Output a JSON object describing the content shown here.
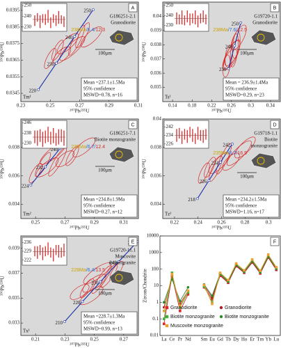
{
  "chart_data": [
    {
      "type": "concordia",
      "panel": "A",
      "sample": "G186251-2.1",
      "rock": [
        "Granodiorite"
      ],
      "age_parts": [
        {
          "text": "238Ma",
          "color": "#c9a400"
        },
        {
          "text": "/6.4/",
          "color": "#2a6fd6"
        },
        {
          "text": "12.3",
          "color": "#d62a2a"
        }
      ],
      "result": [
        "Mean =237.1±1.5Ma",
        "95% confidence",
        "MSWD=0.78, n=16"
      ],
      "scale_label": "100μm",
      "corner_label": "Tm¹",
      "xlabel": "²⁰⁷Pb/²³⁵U",
      "ylabel": "²⁰⁶Pb/²³⁸U",
      "xlim": [
        0.23,
        0.31
      ],
      "xticks": [
        0.23,
        0.25,
        0.27,
        0.29,
        0.31
      ],
      "ylim": [
        0.034,
        0.04
      ],
      "yticks": [
        0.0345,
        0.0355,
        0.0365,
        0.0375,
        0.0385,
        0.0395
      ],
      "age_marks": {
        "ages": [
          220,
          230,
          240,
          250
        ],
        "x": [
          0.2419,
          0.2542,
          0.2666,
          0.2792
        ],
        "y": [
          0.03472,
          0.03632,
          0.03793,
          0.03954
        ]
      },
      "ellipses": {
        "x": [
          0.255,
          0.262,
          0.268,
          0.258,
          0.272,
          0.265,
          0.25,
          0.278
        ],
        "y": [
          0.0371,
          0.0375,
          0.0377,
          0.0368,
          0.038,
          0.0372,
          0.0366,
          0.0379
        ]
      },
      "inset": {
        "ylim": [
          226,
          252
        ],
        "yticks": [
          230,
          240,
          250
        ],
        "mean": 237.1,
        "values": [
          236,
          239,
          235,
          238,
          237,
          240,
          234,
          238,
          236,
          239,
          237,
          235
        ],
        "errors": [
          5,
          4,
          6,
          4,
          5,
          6,
          5,
          4,
          5,
          6,
          4,
          5
        ]
      }
    },
    {
      "type": "concordia",
      "panel": "B",
      "sample": "G19720-1.1",
      "rock": [
        "Granodiorite"
      ],
      "age_parts": [
        {
          "text": "238Ma",
          "color": "#c9a400"
        },
        {
          "text": "/7.6/",
          "color": "#2a6fd6"
        },
        {
          "text": "12.5",
          "color": "#d62a2a"
        }
      ],
      "result": [
        "Mean = 236.9±1.4Ma",
        "95% confidence",
        "MSWD=0.29, n=23"
      ],
      "scale_label": "100μm",
      "corner_label": "Ts¹",
      "xlabel": "²⁰⁷Pb/²³⁵U",
      "ylabel": "²⁰⁶Pb/²³⁸U",
      "xlim": [
        0.12,
        0.36
      ],
      "xticks": [
        0.14,
        0.18,
        0.22,
        0.26,
        0.3,
        0.34
      ],
      "ylim": [
        0.034,
        0.041
      ],
      "yticks": [
        0.035,
        0.036,
        0.037,
        0.038,
        0.039,
        0.04
      ],
      "age_marks": {
        "ages": [
          230,
          240,
          250
        ],
        "x": [
          0.2542,
          0.2666,
          0.2792
        ],
        "y": [
          0.03632,
          0.03793,
          0.03954
        ]
      },
      "ellipses": {
        "x": [
          0.255,
          0.262,
          0.266,
          0.258,
          0.27,
          0.26,
          0.25,
          0.275
        ],
        "y": [
          0.0372,
          0.0374,
          0.0376,
          0.037,
          0.038,
          0.0373,
          0.0365,
          0.0385
        ]
      },
      "inset": {
        "ylim": [
          224,
          252
        ],
        "yticks": [
          230,
          240,
          250
        ],
        "mean": 236.9,
        "values": [
          237,
          236,
          238,
          235,
          239,
          236,
          237,
          238,
          234,
          237,
          239,
          236
        ],
        "errors": [
          6,
          5,
          7,
          5,
          6,
          6,
          5,
          7,
          6,
          5,
          6,
          5
        ]
      }
    },
    {
      "type": "concordia",
      "panel": "C",
      "sample": "G186251-7.1",
      "rock": [
        "Biotite monzogranite"
      ],
      "age_parts": [
        {
          "text": "235Ma",
          "color": "#c9a400"
        },
        {
          "text": "/6.7/",
          "color": "#2a6fd6"
        },
        {
          "text": "12.4",
          "color": "#d62a2a"
        }
      ],
      "result": [
        "Mean =234.8±1.9Ma",
        "95% confidence",
        "MSWD=0.27, n=12"
      ],
      "scale_label": "100μm",
      "corner_label": "Tm²",
      "xlabel": "²⁰⁷Pb/²³⁵U",
      "ylabel": "²⁰⁶Pb/²³⁸U",
      "xlim": [
        0.24,
        0.32
      ],
      "xticks": [
        0.25,
        0.27,
        0.29,
        0.31
      ],
      "ylim": [
        0.033,
        0.04
      ],
      "yticks": [
        0.034,
        0.036,
        0.038
      ],
      "age_marks": {
        "ages": [
          224,
          232,
          240
        ],
        "x": [
          0.2468,
          0.2567,
          0.2666
        ],
        "y": [
          0.03536,
          0.03664,
          0.03793
        ]
      },
      "ellipses": {
        "x": [
          0.25,
          0.258,
          0.265,
          0.27,
          0.255,
          0.262,
          0.275,
          0.283
        ],
        "y": [
          0.0362,
          0.0366,
          0.037,
          0.0372,
          0.0368,
          0.0376,
          0.0374,
          0.038
        ]
      },
      "inset": {
        "ylim": [
          226,
          248
        ],
        "yticks": [
          230,
          238,
          246
        ],
        "mean": 234.8,
        "values": [
          235,
          234,
          236,
          233,
          235,
          237,
          234,
          236,
          233,
          235,
          236,
          234
        ],
        "errors": [
          5,
          6,
          5,
          6,
          5,
          6,
          5,
          6,
          5,
          6,
          5,
          6
        ]
      }
    },
    {
      "type": "concordia",
      "panel": "D",
      "sample": "G19718-1.1",
      "rock": [
        "Biotite",
        "monzogranite"
      ],
      "age_parts": [
        {
          "text": "235Ma",
          "color": "#c9a400"
        },
        {
          "text": "/6.7/",
          "color": "#2a6fd6"
        },
        {
          "text": "16.9",
          "color": "#d62a2a"
        }
      ],
      "result": [
        "Mean =234.2±1.5Ma",
        "95% confidence",
        "MSWD=1.16, n=17"
      ],
      "scale_label": "100μm",
      "corner_label": "Tz¹",
      "xlabel": "²⁰⁷Pb/²³⁵U",
      "ylabel": "²⁰⁶Pb/²³⁸U",
      "xlim": [
        0.21,
        0.31
      ],
      "xticks": [
        0.22,
        0.24,
        0.26,
        0.28,
        0.3
      ],
      "ylim": [
        0.033,
        0.04
      ],
      "yticks": [
        0.034,
        0.036,
        0.038,
        0.04
      ],
      "age_marks": {
        "ages": [
          218,
          226,
          234,
          242
        ],
        "x": [
          0.2395,
          0.2493,
          0.2592,
          0.2691
        ],
        "y": [
          0.0344,
          0.03568,
          0.03697,
          0.03825
        ]
      },
      "ellipses": {
        "x": [
          0.25,
          0.258,
          0.262,
          0.268,
          0.255,
          0.275,
          0.245,
          0.28
        ],
        "y": [
          0.0366,
          0.0369,
          0.0372,
          0.037,
          0.0365,
          0.0376,
          0.0362,
          0.038
        ]
      },
      "inset": {
        "ylim": [
          222,
          248
        ],
        "yticks": [
          226,
          234,
          242
        ],
        "mean": 234.2,
        "values": [
          234,
          236,
          232,
          235,
          233,
          237,
          234,
          231,
          236,
          234,
          233,
          235
        ],
        "errors": [
          6,
          5,
          6,
          5,
          6,
          5,
          6,
          5,
          6,
          5,
          6,
          5
        ]
      }
    },
    {
      "type": "concordia",
      "panel": "E",
      "sample": "G19720-11.1",
      "rock": [
        "Muscovite",
        "monzogranite"
      ],
      "age_parts": [
        {
          "text": "228Ma",
          "color": "#c9a400"
        },
        {
          "text": "/6.4/",
          "color": "#2a6fd6"
        },
        {
          "text": "13.5",
          "color": "#d62a2a"
        }
      ],
      "result": [
        "Mean =228.7±1.3Ma",
        "95% confidence",
        "MSWD=0.99, n=13"
      ],
      "scale_label": "100μm",
      "corner_label": "Tx¹",
      "xlabel": "²⁰⁷Pb/²³⁵U",
      "ylabel": "²⁰⁶Pb/²³⁸U",
      "xlim": [
        0.2,
        0.28
      ],
      "xticks": [
        0.21,
        0.23,
        0.25,
        0.27
      ],
      "ylim": [
        0.032,
        0.04
      ],
      "yticks": [
        0.033,
        0.035,
        0.037,
        0.039
      ],
      "age_marks": {
        "ages": [
          210,
          220,
          230,
          240,
          250
        ],
        "x": [
          0.2298,
          0.2419,
          0.2542,
          0.2666,
          0.2792
        ],
        "y": [
          0.03311,
          0.03472,
          0.03632,
          0.03793,
          0.03954
        ]
      },
      "ellipses": {
        "x": [
          0.245,
          0.25,
          0.255,
          0.24,
          0.26,
          0.252,
          0.265,
          0.248
        ],
        "y": [
          0.0358,
          0.0362,
          0.0365,
          0.0355,
          0.0368,
          0.037,
          0.0372,
          0.0352
        ]
      },
      "inset": {
        "ylim": [
          218,
          240
        ],
        "yticks": [
          222,
          229,
          236
        ],
        "mean": 228.7,
        "values": [
          229,
          228,
          230,
          227,
          229,
          231,
          228,
          226,
          230,
          229,
          228,
          230
        ],
        "errors": [
          4,
          5,
          4,
          5,
          4,
          5,
          4,
          5,
          4,
          5,
          4,
          5
        ]
      }
    },
    {
      "type": "spider",
      "panel": "F",
      "ylabel": "Zircon/Chondrite",
      "log_scale": true,
      "categories": [
        "La",
        "Ce",
        "Pr",
        "Nd",
        null,
        "Sm",
        "Eu",
        "Gd",
        "Tb",
        "Dy",
        "Ho",
        "Er",
        "Tm",
        "Yb",
        "Lu"
      ],
      "ylim": [
        0.01,
        10000
      ],
      "yticks": [
        0.01,
        0.1,
        1,
        10,
        100,
        1000,
        10000
      ],
      "series": [
        {
          "name": "Granodiorite",
          "color": "#d9262c",
          "marker": "square",
          "values": [
            0.05,
            40,
            0.3,
            3,
            null,
            8,
            1.5,
            40,
            15,
            150,
            60,
            250,
            55,
            500,
            90
          ]
        },
        {
          "name": "Granodiorite",
          "color": "#b01c2a",
          "marker": "circle",
          "values": [
            0.5,
            30,
            0.8,
            5,
            null,
            10,
            2,
            45,
            16,
            160,
            65,
            270,
            60,
            520,
            95
          ]
        },
        {
          "name": "Biotite monzogranite",
          "color": "#3bb33b",
          "marker": "square",
          "values": [
            0.1,
            60,
            0.5,
            4,
            null,
            9,
            1,
            50,
            18,
            180,
            70,
            300,
            65,
            600,
            110
          ]
        },
        {
          "name": "Biotite monzogranite",
          "color": "#2a8a2a",
          "marker": "circle",
          "values": [
            1,
            25,
            1.2,
            8,
            null,
            12,
            2.5,
            55,
            20,
            190,
            75,
            320,
            70,
            650,
            120
          ]
        },
        {
          "name": "Muscovite monzogranite",
          "color": "#f0a030",
          "marker": "square",
          "values": [
            0.3,
            50,
            0.6,
            5,
            null,
            11,
            0.8,
            60,
            22,
            220,
            85,
            380,
            80,
            750,
            130
          ]
        }
      ]
    }
  ]
}
